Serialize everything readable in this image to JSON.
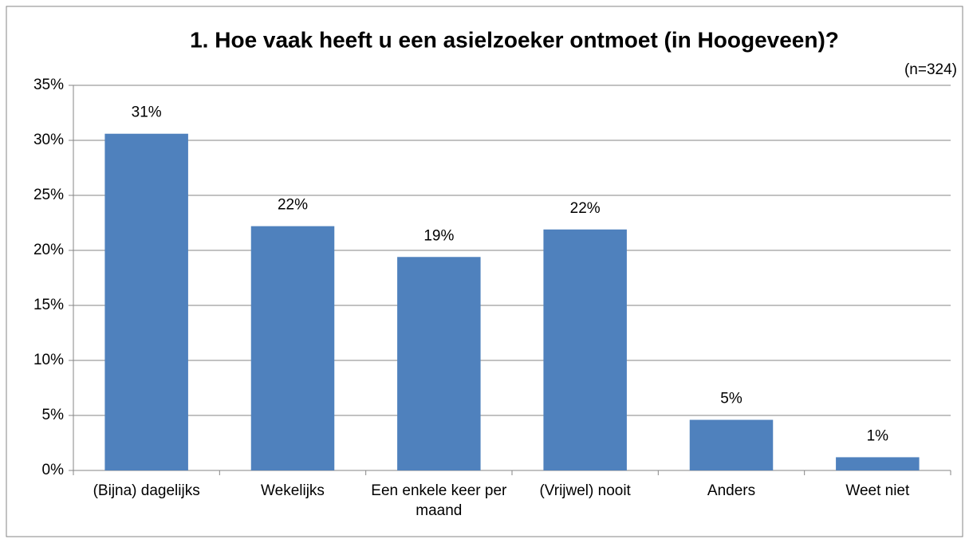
{
  "chart_data": {
    "type": "bar",
    "title": "1. Hoe vaak heeft u een asielzoeker ontmoet (in Hoogeveen)?",
    "subtitle": "(n=324)",
    "categories": [
      "(Bijna) dagelijks",
      "Wekelijks",
      "Een enkele keer per maand",
      "(Vrijwel) nooit",
      "Anders",
      "Weet niet"
    ],
    "values": [
      30.6,
      22.2,
      19.4,
      21.9,
      4.6,
      1.2
    ],
    "value_labels": [
      "31%",
      "22%",
      "19%",
      "22%",
      "5%",
      "1%"
    ],
    "color": "#4f81bd",
    "ylim": [
      0,
      35
    ],
    "yticks": [
      {
        "value": 0,
        "label": "0%"
      },
      {
        "value": 5,
        "label": "5%"
      },
      {
        "value": 10,
        "label": "10%"
      },
      {
        "value": 15,
        "label": "15%"
      },
      {
        "value": 20,
        "label": "20%"
      },
      {
        "value": 25,
        "label": "25%"
      },
      {
        "value": 30,
        "label": "30%"
      },
      {
        "value": 35,
        "label": "35%"
      }
    ],
    "grid": true
  }
}
